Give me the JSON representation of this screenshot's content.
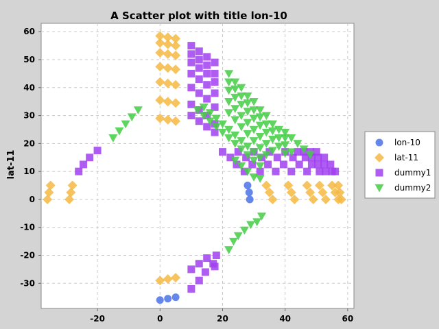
{
  "chart_data": {
    "type": "scatter",
    "title": "A Scatter plot with title lon-10",
    "xlabel": "",
    "ylabel": "lat-11",
    "xlim": [
      -38,
      62
    ],
    "ylim": [
      -39,
      63
    ],
    "x_ticks": [
      -20,
      0,
      20,
      40,
      60
    ],
    "y_ticks": [
      -30,
      -20,
      -10,
      0,
      10,
      20,
      30,
      40,
      50,
      60
    ],
    "grid": true,
    "legend_position": "right",
    "series": [
      {
        "name": "lon-10",
        "color": "#4a72e8",
        "marker": "circle",
        "points": [
          [
            0,
            -36
          ],
          [
            2.5,
            -35.5
          ],
          [
            5,
            -35
          ],
          [
            28,
            5
          ],
          [
            28.5,
            2.5
          ],
          [
            28.7,
            0
          ]
        ]
      },
      {
        "name": "lat-11",
        "color": "#f5b942",
        "marker": "diamond",
        "points": [
          [
            -36,
            0
          ],
          [
            -35.5,
            2.5
          ],
          [
            -35,
            5
          ],
          [
            -29,
            0
          ],
          [
            -28.5,
            2.5
          ],
          [
            -28,
            5
          ],
          [
            0,
            29
          ],
          [
            2.5,
            28.5
          ],
          [
            5,
            28
          ],
          [
            0,
            -29
          ],
          [
            2.5,
            -28.5
          ],
          [
            5,
            -28
          ],
          [
            0,
            35.5
          ],
          [
            2.5,
            35
          ],
          [
            5,
            34.5
          ],
          [
            0,
            42
          ],
          [
            2.5,
            41.5
          ],
          [
            5,
            41
          ],
          [
            0,
            47.5
          ],
          [
            2.5,
            47
          ],
          [
            5,
            46.5
          ],
          [
            0,
            52.5
          ],
          [
            2.5,
            52
          ],
          [
            5,
            51.5
          ],
          [
            0,
            56
          ],
          [
            2.5,
            55.5
          ],
          [
            5,
            55
          ],
          [
            0,
            58.5
          ],
          [
            2.5,
            58
          ],
          [
            5,
            57.5
          ],
          [
            34,
            5
          ],
          [
            35,
            2.5
          ],
          [
            36,
            0
          ],
          [
            41,
            5
          ],
          [
            42,
            2.5
          ],
          [
            43,
            0
          ],
          [
            47,
            5
          ],
          [
            48,
            2.5
          ],
          [
            49,
            0
          ],
          [
            51,
            5
          ],
          [
            52,
            2.5
          ],
          [
            53,
            0
          ],
          [
            55,
            5
          ],
          [
            56,
            2.5
          ],
          [
            57,
            0
          ],
          [
            57,
            5
          ],
          [
            57.5,
            2.5
          ],
          [
            58,
            0
          ]
        ]
      },
      {
        "name": "dummy1",
        "color": "#a040f0",
        "marker": "square",
        "points": [
          [
            -26,
            10
          ],
          [
            -24.5,
            12.5
          ],
          [
            -22.5,
            15
          ],
          [
            -20,
            17.5
          ],
          [
            10,
            -32
          ],
          [
            12.5,
            -29
          ],
          [
            14.5,
            -26
          ],
          [
            17,
            -23
          ],
          [
            18,
            -20
          ],
          [
            10,
            -25
          ],
          [
            12.5,
            -23
          ],
          [
            15,
            -21
          ],
          [
            17.5,
            -24
          ],
          [
            10,
            55
          ],
          [
            12.5,
            53
          ],
          [
            15,
            51
          ],
          [
            17.5,
            49
          ],
          [
            10,
            52
          ],
          [
            12.5,
            50
          ],
          [
            15,
            48
          ],
          [
            17.5,
            45
          ],
          [
            10,
            49
          ],
          [
            12.5,
            47
          ],
          [
            15,
            45
          ],
          [
            17.5,
            42
          ],
          [
            10,
            45
          ],
          [
            12.5,
            43
          ],
          [
            15,
            41
          ],
          [
            17.5,
            38
          ],
          [
            10,
            40
          ],
          [
            12.5,
            38
          ],
          [
            15,
            36
          ],
          [
            17.5,
            33
          ],
          [
            10,
            34
          ],
          [
            12.5,
            32
          ],
          [
            15,
            30
          ],
          [
            17.5,
            27
          ],
          [
            10,
            30
          ],
          [
            12.5,
            28
          ],
          [
            15,
            26
          ],
          [
            17.5,
            24
          ],
          [
            20,
            17
          ],
          [
            22.5,
            15
          ],
          [
            24.5,
            12.5
          ],
          [
            27,
            10
          ],
          [
            25,
            17
          ],
          [
            27.5,
            15
          ],
          [
            29.5,
            12.5
          ],
          [
            32,
            10
          ],
          [
            30,
            17
          ],
          [
            32.5,
            15
          ],
          [
            34.5,
            12.5
          ],
          [
            37,
            10
          ],
          [
            35,
            17
          ],
          [
            37.5,
            15
          ],
          [
            39.5,
            12.5
          ],
          [
            42,
            10
          ],
          [
            40,
            17
          ],
          [
            42.5,
            15
          ],
          [
            44.5,
            12.5
          ],
          [
            47,
            10
          ],
          [
            44,
            17
          ],
          [
            46.5,
            15
          ],
          [
            48.5,
            12.5
          ],
          [
            51,
            10
          ],
          [
            46,
            17
          ],
          [
            48.5,
            15
          ],
          [
            50.5,
            12.5
          ],
          [
            53,
            10
          ],
          [
            48,
            17
          ],
          [
            50.5,
            15
          ],
          [
            52.5,
            12.5
          ],
          [
            55,
            10
          ],
          [
            50,
            17
          ],
          [
            52.5,
            15
          ],
          [
            54.5,
            12.5
          ],
          [
            56,
            10
          ]
        ]
      },
      {
        "name": "dummy2",
        "color": "#44cc44",
        "marker": "triangle-down",
        "points": [
          [
            -15,
            22
          ],
          [
            -13,
            24.5
          ],
          [
            -11,
            27
          ],
          [
            -9,
            29.5
          ],
          [
            -7,
            32
          ],
          [
            22,
            -18
          ],
          [
            23.5,
            -15
          ],
          [
            25,
            -13
          ],
          [
            27,
            -11
          ],
          [
            29,
            -9
          ],
          [
            31,
            -8
          ],
          [
            32.5,
            -6
          ],
          [
            22,
            45
          ],
          [
            24,
            42
          ],
          [
            26,
            40
          ],
          [
            28,
            37
          ],
          [
            30,
            35
          ],
          [
            32,
            32
          ],
          [
            34,
            30
          ],
          [
            36,
            27
          ],
          [
            38,
            25
          ],
          [
            40,
            22
          ],
          [
            22,
            42
          ],
          [
            24,
            39.5
          ],
          [
            26,
            37
          ],
          [
            28,
            34.5
          ],
          [
            30,
            32
          ],
          [
            32,
            29.5
          ],
          [
            34,
            27
          ],
          [
            36,
            24.5
          ],
          [
            38,
            22
          ],
          [
            40,
            19.5
          ],
          [
            42,
            17
          ],
          [
            22,
            39
          ],
          [
            24,
            36.5
          ],
          [
            26,
            34
          ],
          [
            28,
            31.5
          ],
          [
            30,
            29
          ],
          [
            32,
            26.5
          ],
          [
            34,
            24
          ],
          [
            36,
            21.5
          ],
          [
            38,
            19
          ],
          [
            40,
            16.5
          ],
          [
            22,
            35
          ],
          [
            24,
            32.5
          ],
          [
            26,
            30
          ],
          [
            28,
            27.5
          ],
          [
            30,
            25
          ],
          [
            32,
            22.5
          ],
          [
            34,
            20
          ],
          [
            36,
            17.5
          ],
          [
            22,
            31
          ],
          [
            24,
            28.5
          ],
          [
            26,
            26
          ],
          [
            28,
            23.5
          ],
          [
            30,
            21
          ],
          [
            32,
            18.5
          ],
          [
            34,
            16
          ],
          [
            14,
            33
          ],
          [
            16,
            31
          ],
          [
            18,
            29
          ],
          [
            20,
            27
          ],
          [
            22,
            25
          ],
          [
            24,
            23
          ],
          [
            26,
            21
          ],
          [
            28,
            19
          ],
          [
            30,
            17
          ],
          [
            32,
            15
          ],
          [
            12,
            32
          ],
          [
            14,
            30
          ],
          [
            16,
            28
          ],
          [
            18,
            26
          ],
          [
            20,
            24
          ],
          [
            22,
            22
          ],
          [
            24,
            20
          ],
          [
            26,
            18
          ],
          [
            28,
            16
          ],
          [
            30,
            14
          ],
          [
            32,
            12
          ],
          [
            24,
            14
          ],
          [
            26,
            12
          ],
          [
            28,
            10
          ],
          [
            30,
            8
          ],
          [
            32,
            7.5
          ],
          [
            40,
            24
          ],
          [
            42,
            22
          ],
          [
            44,
            20
          ],
          [
            46,
            18
          ],
          [
            48,
            16
          ]
        ]
      }
    ]
  }
}
